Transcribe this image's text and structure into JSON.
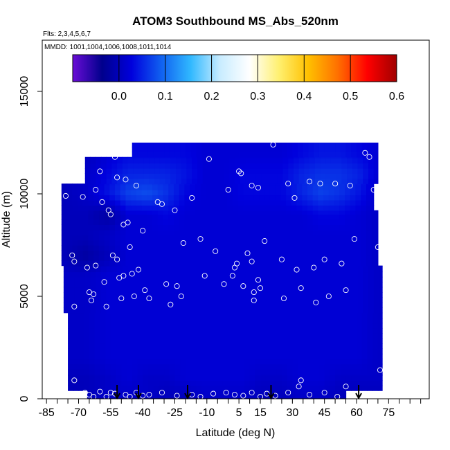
{
  "chart_data": {
    "type": "heatmap",
    "title": "ATOM3 Southbound MS_Abs_520nm",
    "flights_label": "Flts: 2,3,4,5,6,7",
    "dates_label": "MMDD: 1001,1004,1006,1008,1011,1014",
    "xlabel": "Latitude (deg N)",
    "ylabel": "Altitude (m)",
    "xlim": [
      -87,
      94
    ],
    "ylim": [
      0,
      17500
    ],
    "x_ticks": [
      -85,
      -70,
      -55,
      -40,
      -25,
      -10,
      5,
      15,
      30,
      45,
      60,
      75
    ],
    "x_minor_ticks": [
      -80,
      -75,
      -65,
      -60,
      -50,
      -45,
      -35,
      -30,
      -20,
      -15,
      -5,
      0,
      10,
      20,
      25,
      35,
      40,
      50,
      55,
      65,
      70,
      80,
      85,
      90
    ],
    "y_ticks": [
      0,
      5000,
      10000,
      15000
    ],
    "colorbar": {
      "min": -0.1,
      "max": 0.6,
      "ticks": [
        0.0,
        0.1,
        0.2,
        0.3,
        0.4,
        0.5,
        0.6
      ],
      "tick_labels": [
        "0.0",
        "0.1",
        "0.2",
        "0.3",
        "0.4",
        "0.5",
        "0.6"
      ]
    },
    "colormap": [
      "#6a0dd6",
      "#00008c",
      "#0000dd",
      "#1060f0",
      "#30b8ff",
      "#c8ecff",
      "#ffffff",
      "#fff070",
      "#ffc000",
      "#ff7000",
      "#ff0000",
      "#a00000"
    ],
    "field": {
      "latitude": [
        -78,
        -67,
        -56,
        -47,
        -38,
        -29,
        -20,
        -11,
        -2,
        7,
        16,
        25,
        34,
        43,
        52,
        61,
        70
      ],
      "altitude": [
        0,
        1000,
        2000,
        3000,
        4000,
        5000,
        6000,
        7000,
        8000,
        9000,
        10000,
        11000,
        12000
      ],
      "values": [
        [
          0.0,
          0.0,
          0.01,
          0.01,
          0.01,
          0.0,
          0.0,
          0.01,
          0.01,
          0.01,
          0.0,
          0.0,
          0.01,
          0.01,
          0.0,
          0.0,
          0.0
        ],
        [
          0.0,
          0.0,
          0.01,
          0.02,
          0.01,
          0.01,
          0.02,
          0.02,
          0.02,
          0.02,
          0.01,
          0.01,
          0.02,
          0.02,
          0.01,
          0.01,
          0.01
        ],
        [
          0.01,
          0.01,
          0.02,
          0.02,
          0.02,
          0.02,
          0.02,
          0.02,
          0.02,
          0.02,
          0.02,
          0.02,
          0.02,
          0.02,
          0.02,
          0.02,
          0.01
        ],
        [
          0.01,
          0.01,
          0.02,
          0.02,
          0.02,
          0.02,
          0.02,
          0.02,
          0.02,
          0.02,
          0.02,
          0.02,
          0.02,
          0.02,
          0.02,
          0.02,
          0.01
        ],
        [
          0.01,
          0.01,
          0.02,
          0.02,
          0.02,
          0.02,
          0.02,
          0.02,
          0.02,
          0.02,
          0.02,
          0.02,
          0.02,
          0.02,
          0.02,
          0.02,
          0.01
        ],
        [
          0.01,
          0.01,
          0.02,
          0.02,
          0.02,
          0.02,
          0.02,
          0.02,
          0.02,
          0.02,
          0.02,
          0.02,
          0.02,
          0.02,
          0.02,
          0.02,
          0.01
        ],
        [
          0.01,
          0.01,
          0.02,
          0.02,
          0.02,
          0.02,
          0.02,
          0.02,
          0.02,
          0.02,
          0.02,
          0.02,
          0.02,
          0.02,
          0.02,
          0.02,
          0.01
        ],
        [
          0.0,
          -0.02,
          0.0,
          0.02,
          0.02,
          0.02,
          0.02,
          0.02,
          0.02,
          0.02,
          0.02,
          0.02,
          0.02,
          0.02,
          0.02,
          0.02,
          0.01
        ],
        [
          0.0,
          0.0,
          0.01,
          0.02,
          0.02,
          0.02,
          0.02,
          0.02,
          0.02,
          0.02,
          0.02,
          0.02,
          0.02,
          0.02,
          0.02,
          0.02,
          0.01
        ],
        [
          0.0,
          0.0,
          -0.02,
          0.02,
          0.02,
          0.03,
          0.02,
          0.02,
          0.02,
          0.02,
          0.02,
          0.02,
          0.02,
          0.03,
          0.03,
          0.02,
          0.01
        ],
        [
          0.0,
          0.01,
          0.04,
          0.07,
          0.08,
          0.06,
          0.03,
          0.02,
          0.02,
          0.03,
          0.03,
          0.03,
          0.05,
          0.07,
          0.06,
          0.04,
          0.01
        ],
        [
          0.0,
          0.01,
          0.03,
          0.05,
          0.05,
          0.05,
          0.04,
          0.02,
          0.02,
          0.03,
          0.03,
          0.03,
          0.05,
          0.06,
          0.06,
          0.05,
          0.02
        ],
        [
          0.0,
          0.0,
          0.02,
          0.03,
          0.03,
          0.03,
          0.03,
          0.02,
          0.02,
          0.02,
          0.02,
          0.02,
          0.03,
          0.04,
          0.04,
          0.03,
          0.02
        ]
      ]
    },
    "coverage": [
      {
        "alt_from": 0,
        "alt_to": 400,
        "lat_from": -66,
        "lat_to": 55
      },
      {
        "alt_from": 400,
        "alt_to": 1200,
        "lat_from": -75,
        "lat_to": 72
      },
      {
        "alt_from": 1200,
        "alt_to": 4200,
        "lat_from": -75,
        "lat_to": 72
      },
      {
        "alt_from": 4200,
        "alt_to": 6500,
        "lat_from": -77,
        "lat_to": 72
      },
      {
        "alt_from": 6500,
        "alt_to": 9200,
        "lat_from": -78,
        "lat_to": 70
      },
      {
        "alt_from": 9200,
        "alt_to": 10500,
        "lat_from": -78,
        "lat_to": 68
      },
      {
        "alt_from": 10500,
        "alt_to": 11800,
        "lat_from": -67,
        "lat_to": 70
      },
      {
        "alt_from": 11800,
        "alt_to": 12500,
        "lat_from": -45,
        "lat_to": 70
      }
    ],
    "sample_points": [
      [
        -76,
        9900
      ],
      [
        -73,
        7000
      ],
      [
        -72,
        6700
      ],
      [
        -72,
        4500
      ],
      [
        -72,
        900
      ],
      [
        -68,
        9850
      ],
      [
        -66,
        6400
      ],
      [
        -65,
        5200
      ],
      [
        -64,
        4800
      ],
      [
        -63,
        5100
      ],
      [
        -62,
        10200
      ],
      [
        -62,
        6500
      ],
      [
        -60,
        11100
      ],
      [
        -59,
        9600
      ],
      [
        -58,
        5700
      ],
      [
        -57,
        4500
      ],
      [
        -56,
        9200
      ],
      [
        -55,
        9000
      ],
      [
        -54,
        7000
      ],
      [
        -53,
        11800
      ],
      [
        -52,
        10800
      ],
      [
        -52,
        6800
      ],
      [
        -51,
        5900
      ],
      [
        -50,
        4900
      ],
      [
        -49,
        8500
      ],
      [
        -49,
        6000
      ],
      [
        -48,
        10700
      ],
      [
        -47,
        8600
      ],
      [
        -46,
        7400
      ],
      [
        -45,
        6100
      ],
      [
        -44,
        5000
      ],
      [
        -43,
        10400
      ],
      [
        -42,
        6300
      ],
      [
        -40,
        8200
      ],
      [
        -39,
        5300
      ],
      [
        -37,
        4900
      ],
      [
        -33,
        9600
      ],
      [
        -31,
        9500
      ],
      [
        -29,
        5600
      ],
      [
        -27,
        4600
      ],
      [
        -25,
        9200
      ],
      [
        -24,
        5500
      ],
      [
        -22,
        5000
      ],
      [
        -21,
        7600
      ],
      [
        -17,
        9800
      ],
      [
        -13,
        7800
      ],
      [
        -11,
        6000
      ],
      [
        -9,
        11700
      ],
      [
        -6,
        7200
      ],
      [
        -2,
        5600
      ],
      [
        0,
        10200
      ],
      [
        2,
        6000
      ],
      [
        3,
        6400
      ],
      [
        4,
        6600
      ],
      [
        5,
        11100
      ],
      [
        6,
        11000
      ],
      [
        7,
        5500
      ],
      [
        9,
        7100
      ],
      [
        11,
        10400
      ],
      [
        11,
        6700
      ],
      [
        12,
        5200
      ],
      [
        12,
        4800
      ],
      [
        14,
        5800
      ],
      [
        14,
        10300
      ],
      [
        15,
        5400
      ],
      [
        17,
        7700
      ],
      [
        21,
        12400
      ],
      [
        25,
        6800
      ],
      [
        26,
        4900
      ],
      [
        28,
        10500
      ],
      [
        31,
        9800
      ],
      [
        32,
        6300
      ],
      [
        34,
        5400
      ],
      [
        38,
        10600
      ],
      [
        40,
        6400
      ],
      [
        41,
        4700
      ],
      [
        43,
        10500
      ],
      [
        45,
        6800
      ],
      [
        47,
        5000
      ],
      [
        50,
        10500
      ],
      [
        53,
        6600
      ],
      [
        55,
        5300
      ],
      [
        57,
        10400
      ],
      [
        59,
        7800
      ],
      [
        64,
        12000
      ],
      [
        66,
        11800
      ],
      [
        68,
        10200
      ],
      [
        70,
        7400
      ],
      [
        71,
        1400
      ],
      [
        -67,
        300
      ],
      [
        -65,
        200
      ],
      [
        -63,
        100
      ],
      [
        -60,
        350
      ],
      [
        -57,
        100
      ],
      [
        -55,
        300
      ],
      [
        -53,
        250
      ],
      [
        -48,
        200
      ],
      [
        -46,
        100
      ],
      [
        -43,
        300
      ],
      [
        -40,
        150
      ],
      [
        -37,
        200
      ],
      [
        -31,
        300
      ],
      [
        -24,
        150
      ],
      [
        -17,
        200
      ],
      [
        -13,
        100
      ],
      [
        -7,
        250
      ],
      [
        -1,
        300
      ],
      [
        3,
        200
      ],
      [
        7,
        150
      ],
      [
        11,
        300
      ],
      [
        15,
        100
      ],
      [
        18,
        250
      ],
      [
        22,
        150
      ],
      [
        28,
        300
      ],
      [
        33,
        600
      ],
      [
        34,
        900
      ],
      [
        38,
        200
      ],
      [
        45,
        300
      ],
      [
        51,
        100
      ],
      [
        55,
        600
      ]
    ],
    "arrows_at_latitude": [
      -52,
      -42,
      -19,
      20,
      61
    ]
  }
}
